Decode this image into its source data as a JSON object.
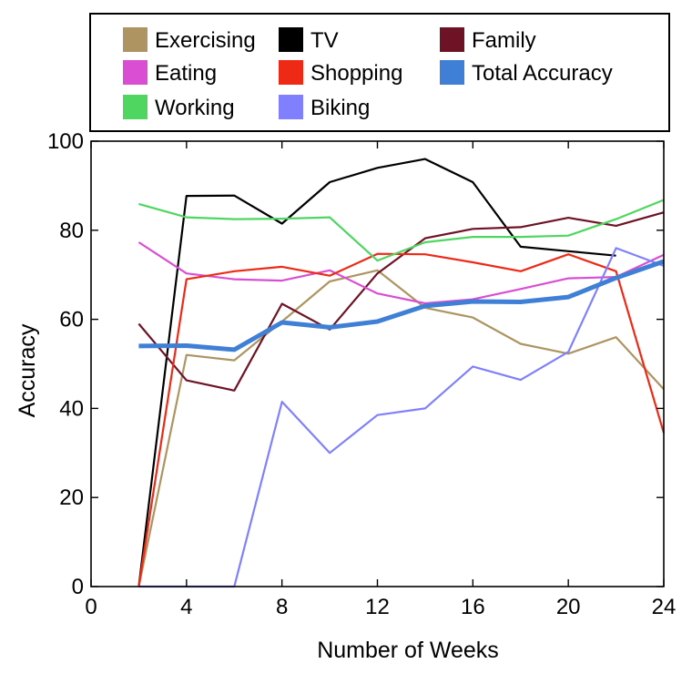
{
  "chart_data": {
    "type": "line",
    "xlabel": "Number of Weeks",
    "ylabel": "Accuracy",
    "xlim": [
      0,
      24
    ],
    "ylim": [
      0,
      100
    ],
    "xticks": [
      0,
      4,
      8,
      12,
      16,
      20,
      24
    ],
    "yticks": [
      0,
      20,
      40,
      60,
      80,
      100
    ],
    "grid": false,
    "legend_position": "top",
    "series": [
      {
        "name": "Exercising",
        "color": "#ad9460",
        "x": [
          2,
          4,
          6,
          8,
          10,
          12,
          14,
          16,
          18,
          20,
          22,
          24
        ],
        "y": [
          0,
          52,
          50.8,
          59.5,
          68.5,
          71,
          62.6,
          60.4,
          54.5,
          52.3,
          56,
          44.3
        ]
      },
      {
        "name": "TV",
        "color": "#000000",
        "x": [
          2,
          4,
          6,
          8,
          10,
          12,
          14,
          16,
          18,
          20,
          22
        ],
        "y": [
          0,
          87.7,
          87.8,
          81.5,
          90.8,
          94,
          96,
          90.8,
          76.3,
          75.3,
          74.3
        ]
      },
      {
        "name": "Family",
        "color": "#6e1225",
        "x": [
          2,
          4,
          6,
          8,
          10,
          12,
          14,
          16,
          18,
          20,
          22,
          24
        ],
        "y": [
          59,
          46.3,
          44,
          63.5,
          57.7,
          70.3,
          78.2,
          80.3,
          80.7,
          82.8,
          81,
          84
        ]
      },
      {
        "name": "Eating",
        "color": "#d94ed3",
        "x": [
          2,
          4,
          6,
          8,
          10,
          12,
          14,
          16,
          18,
          20,
          22,
          24
        ],
        "y": [
          77.3,
          70.3,
          69,
          68.7,
          71,
          65.8,
          63.6,
          64.5,
          66.8,
          69.2,
          69.5,
          74.5
        ]
      },
      {
        "name": "Shopping",
        "color": "#ee2a16",
        "x": [
          2,
          4,
          6,
          8,
          10,
          12,
          14,
          16,
          18,
          20,
          22,
          24
        ],
        "y": [
          0,
          69,
          70.8,
          71.8,
          69.8,
          74.7,
          74.6,
          72.8,
          70.8,
          74.6,
          70.8,
          34.5
        ]
      },
      {
        "name": "Total Accuracy",
        "color": "#3f7fd6",
        "x": [
          2,
          4,
          6,
          8,
          10,
          12,
          14,
          16,
          18,
          20,
          22,
          24
        ],
        "y": [
          54,
          54.1,
          53.2,
          59.3,
          58.2,
          59.5,
          63,
          64,
          63.9,
          65,
          69.3,
          73
        ]
      },
      {
        "name": "Working",
        "color": "#4fd660",
        "x": [
          2,
          4,
          6,
          8,
          10,
          12,
          14,
          16,
          18,
          20,
          22,
          24
        ],
        "y": [
          85.9,
          82.9,
          82.5,
          82.6,
          82.9,
          73.2,
          77.3,
          78.5,
          78.5,
          78.8,
          82.5,
          86.8
        ]
      },
      {
        "name": "Biking",
        "color": "#8080ff",
        "x": [
          2,
          4,
          6,
          8,
          10,
          12,
          14,
          16,
          18,
          20,
          22,
          24
        ],
        "y": [
          0,
          0,
          0,
          41.5,
          30,
          38.5,
          40,
          49.4,
          46.4,
          52.7,
          76,
          72
        ]
      }
    ]
  }
}
